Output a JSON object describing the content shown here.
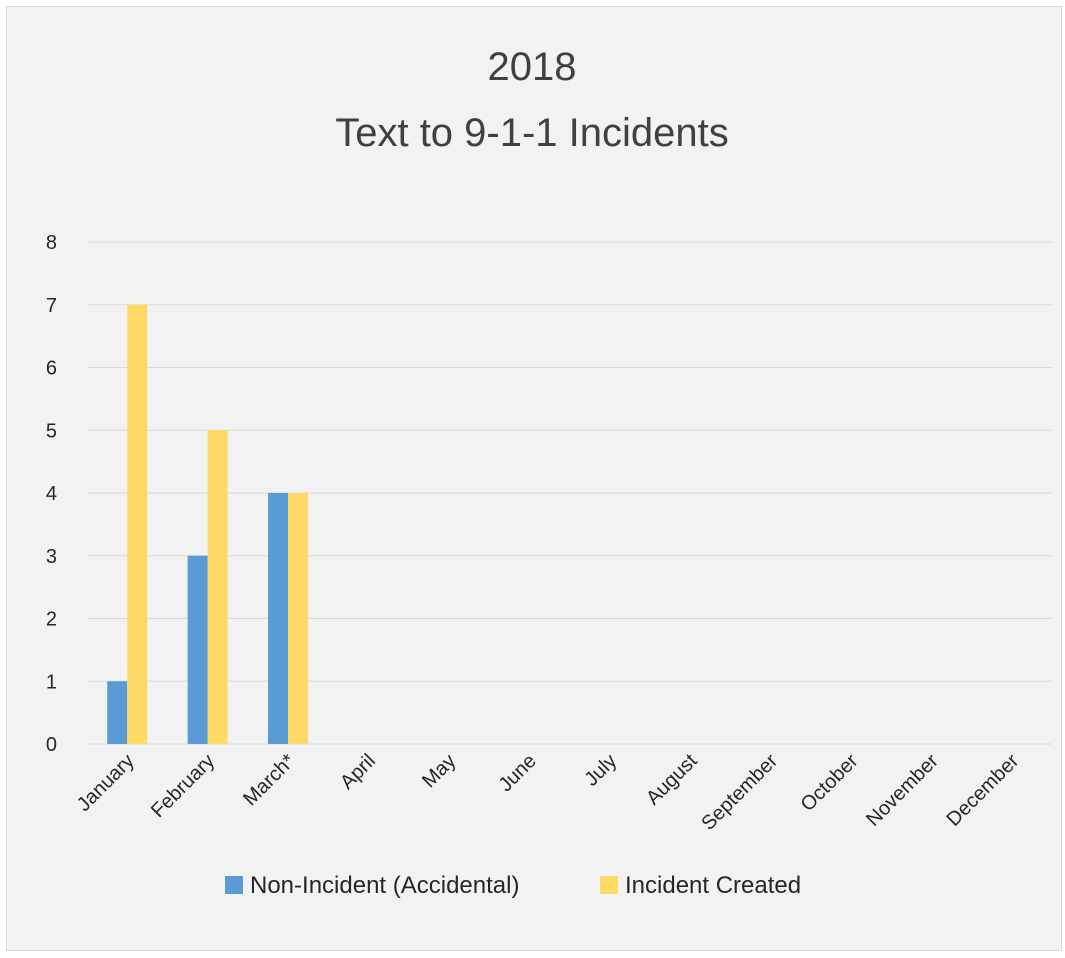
{
  "chart_data": {
    "type": "bar",
    "title_lines": [
      "2018",
      "Text to 9-1-1 Incidents"
    ],
    "categories": [
      "January",
      "February",
      "March*",
      "April",
      "May",
      "June",
      "July",
      "August",
      "September",
      "October",
      "November",
      "December"
    ],
    "series": [
      {
        "name": "Non-Incident (Accidental)",
        "color": "#5b9bd5",
        "values": [
          1,
          3,
          4,
          0,
          0,
          0,
          0,
          0,
          0,
          0,
          0,
          0
        ]
      },
      {
        "name": "Incident Created",
        "color": "#ffd966",
        "values": [
          7,
          5,
          4,
          0,
          0,
          0,
          0,
          0,
          0,
          0,
          0,
          0
        ]
      }
    ],
    "ylim": [
      0,
      8
    ],
    "yticks": [
      0,
      1,
      2,
      3,
      4,
      5,
      6,
      7,
      8
    ],
    "grid": true,
    "legend_position": "bottom"
  }
}
